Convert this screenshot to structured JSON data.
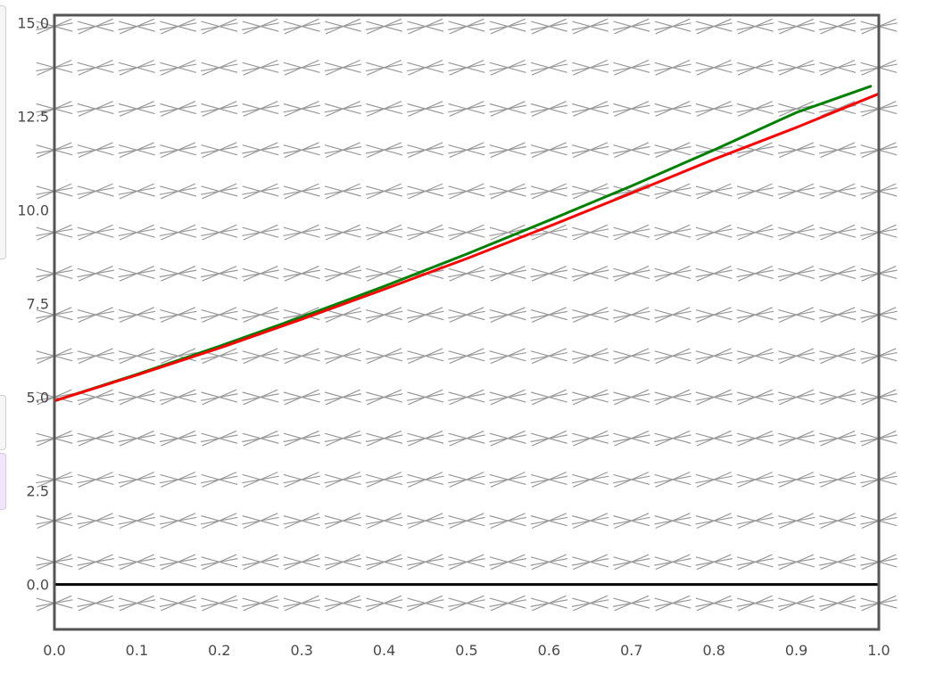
{
  "chart_data": {
    "type": "line",
    "title": "",
    "xlabel": "",
    "ylabel": "",
    "xlim": [
      0.0,
      1.0
    ],
    "ylim": [
      -1.2,
      15.2
    ],
    "x_ticks": [
      "0.0",
      "0.1",
      "0.2",
      "0.3",
      "0.4",
      "0.5",
      "0.6",
      "0.7",
      "0.8",
      "0.9",
      "1.0"
    ],
    "y_ticks": [
      "0.0",
      "2.5",
      "5.0",
      "7.5",
      "10.0",
      "12.5",
      "15.0"
    ],
    "grid": false,
    "legend": "none",
    "slope_field": {
      "color": "#999999",
      "x_start": 0.0,
      "x_step": 0.05,
      "x_count": 21,
      "y_start": -0.5,
      "y_step": 1.1,
      "y_count": 15,
      "slopes": [
        4,
        9.5,
        -6
      ]
    },
    "zero_line_color": "#000000",
    "series": [
      {
        "color": "#008000",
        "x": [
          0.0,
          0.1,
          0.2,
          0.3,
          0.4,
          0.5,
          0.6,
          0.7,
          0.8,
          0.9,
          0.99
        ],
        "y": [
          4.9,
          5.61,
          6.36,
          7.14,
          7.96,
          8.82,
          9.72,
          10.64,
          11.6,
          12.6,
          13.3
        ]
      },
      {
        "color": "#ff0000",
        "x": [
          0.0,
          0.1,
          0.2,
          0.3,
          0.4,
          0.5,
          0.6,
          0.7,
          0.8,
          0.9,
          1.0
        ],
        "y": [
          4.9,
          5.59,
          6.31,
          7.08,
          7.88,
          8.7,
          9.56,
          10.45,
          11.35,
          12.2,
          13.1
        ]
      }
    ]
  }
}
